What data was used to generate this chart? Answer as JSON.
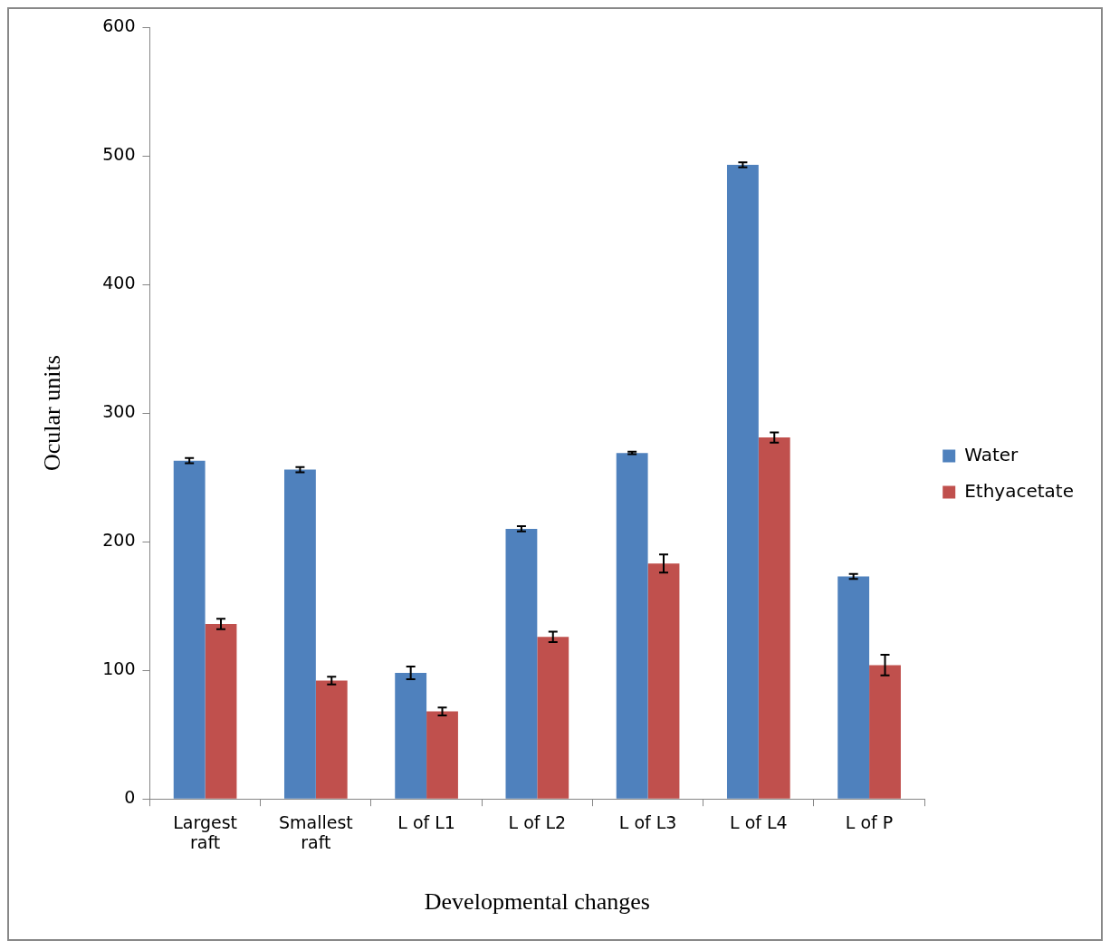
{
  "chart_data": {
    "type": "bar",
    "xlabel": "Developmental changes",
    "ylabel": "Ocular units",
    "categories": [
      "Largest raft",
      "Smallest raft",
      "L of L1",
      "L of L2",
      "L of L3",
      "L of L4",
      "L of P"
    ],
    "series": [
      {
        "name": "Water",
        "color": "#4f81bd",
        "values": [
          263,
          256,
          98,
          210,
          269,
          493,
          173
        ],
        "errors": [
          2,
          2,
          5,
          2,
          1,
          2,
          2
        ]
      },
      {
        "name": "Ethyacetate",
        "color": "#c0504d",
        "values": [
          136,
          92,
          68,
          126,
          183,
          281,
          104
        ],
        "errors": [
          4,
          3,
          3,
          4,
          7,
          4,
          8
        ]
      }
    ],
    "ylim": [
      0,
      600
    ],
    "yticks": [
      0,
      100,
      200,
      300,
      400,
      500,
      600
    ],
    "grid": false,
    "legend": "right"
  }
}
